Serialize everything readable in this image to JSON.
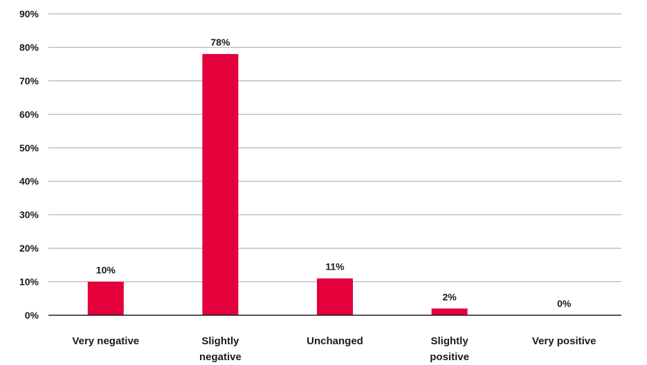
{
  "chart_data": {
    "type": "bar",
    "categories": [
      [
        "Very negative"
      ],
      [
        "Slightly",
        "negative"
      ],
      [
        "Unchanged"
      ],
      [
        "Slightly",
        "positive"
      ],
      [
        "Very positive"
      ]
    ],
    "values": [
      10,
      78,
      11,
      2,
      0
    ],
    "data_labels": [
      "10%",
      "78%",
      "11%",
      "2%",
      "0%"
    ],
    "y_ticks": [
      "0%",
      "10%",
      "20%",
      "30%",
      "40%",
      "50%",
      "60%",
      "70%",
      "80%",
      "90%"
    ],
    "ylim": [
      0,
      90
    ],
    "grid": true,
    "bar_color": "#e4003b",
    "title": "",
    "xlabel": "",
    "ylabel": ""
  }
}
